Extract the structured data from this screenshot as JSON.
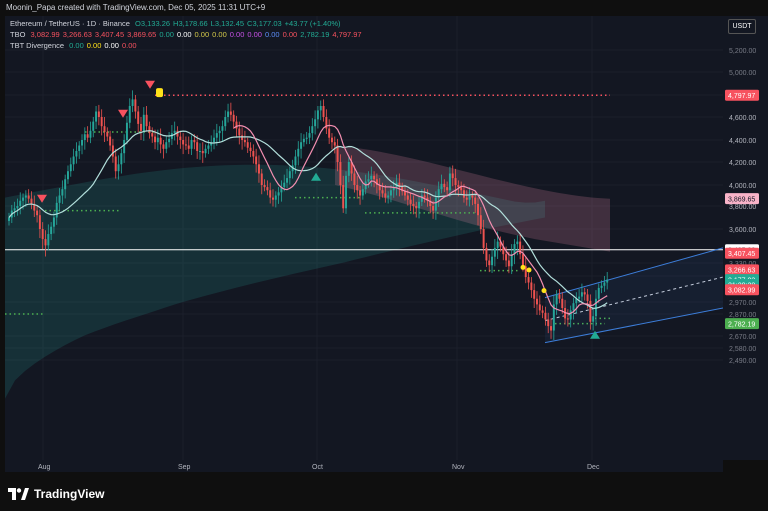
{
  "header": {
    "credit": "Moonin_Papa created with TradingView.com, Dec 05, 2025 11:31 UTC+9"
  },
  "legend": {
    "symbol": "Ethereum / TetherUS · 1D · Binance",
    "ohlc": [
      {
        "k": "O",
        "v": "3,133.26"
      },
      {
        "k": "H",
        "v": "3,178.66"
      },
      {
        "k": "L",
        "v": "3,132.45"
      },
      {
        "k": "C",
        "v": "3,177.03"
      },
      {
        "k": "",
        "v": "+43.77 (+1.40%)"
      }
    ],
    "tbo_label": "TBO",
    "tbo_values": [
      {
        "v": "3,082.99",
        "c": "#f7525f"
      },
      {
        "v": "3,266.63",
        "c": "#f7525f"
      },
      {
        "v": "3,407.45",
        "c": "#f7525f"
      },
      {
        "v": "3,869.65",
        "c": "#f7525f"
      },
      {
        "v": "0.00",
        "c": "#22ab94"
      },
      {
        "v": "0.00",
        "c": "#ffffff"
      },
      {
        "v": "0.00",
        "c": "#d4c94a"
      },
      {
        "v": "0.00",
        "c": "#d4c94a"
      },
      {
        "v": "0.00",
        "c": "#c651e6"
      },
      {
        "v": "0.00",
        "c": "#c651e6"
      },
      {
        "v": "0.00",
        "c": "#5b8cf5"
      },
      {
        "v": "0.00",
        "c": "#f7525f"
      },
      {
        "v": "2,782.19",
        "c": "#22ab94"
      },
      {
        "v": "4,797.97",
        "c": "#f7525f"
      }
    ],
    "tbt_label": "TBT Divergence",
    "tbt_values": [
      {
        "v": "0.00",
        "c": "#22ab94"
      },
      {
        "v": "0.00",
        "c": "#ffe119"
      },
      {
        "v": "0.00",
        "c": "#ffffff"
      },
      {
        "v": "0.00",
        "c": "#f7525f"
      }
    ]
  },
  "currency": "USDT",
  "footer": {
    "brand": "TradingView"
  },
  "chart_data": {
    "type": "candlestick",
    "x_labels": [
      "Aug",
      "Sep",
      "Oct",
      "Nov",
      "Dec"
    ],
    "y_ticks": [
      "5,200.00",
      "5,000.00",
      "4,800.00",
      "4,600.00",
      "4,400.00",
      "4,200.00",
      "4,000.00",
      "3,800.00",
      "3,600.00",
      "3,330.00",
      "3,210.00",
      "2,970.00",
      "2,870.00",
      "2,670.00",
      "2,580.00",
      "2,490.00"
    ],
    "y_tick_values": [
      5200,
      5000,
      4800,
      4600,
      4400,
      4200,
      4000,
      3800,
      3600,
      3330,
      3210,
      2970,
      2870,
      2670,
      2580,
      2490
    ],
    "y_ticks_bold": [
      "4,800.00",
      "4,600.00",
      "4,400.00",
      "4,200.00",
      "4,000.00",
      "3,800.00",
      "3,600.00"
    ],
    "price_tags": [
      {
        "label": "4,797.97",
        "value": 4797.97,
        "bg": "#f7525f",
        "fg": "#ffffff"
      },
      {
        "label": "3,869.65",
        "value": 3869.65,
        "bg": "#f8b3c8",
        "fg": "#131722"
      },
      {
        "label": "3,435.00",
        "value": 3435,
        "bg": "#ffffff",
        "fg": "#131722"
      },
      {
        "label": "3,407.45",
        "value": 3407.45,
        "bg": "#f7525f",
        "fg": "#ffffff"
      },
      {
        "label": "3,266.63",
        "value": 3266.63,
        "bg": "#f7525f",
        "fg": "#ffffff"
      },
      {
        "label": "3,177.03",
        "value": 3177.03,
        "bg": "#22ab94",
        "fg": "#ffffff"
      },
      {
        "label": "21:28:28",
        "value": 3132,
        "bg": "#22ab94",
        "fg": "#ffffff"
      },
      {
        "label": "3,082.99",
        "value": 3082.99,
        "bg": "#f7525f",
        "fg": "#ffffff"
      },
      {
        "label": "2,782.19",
        "value": 2782.19,
        "bg": "#4caf50",
        "fg": "#ffffff"
      }
    ],
    "hline": 3435,
    "colors": {
      "up": "#26a69a",
      "down": "#ef5350",
      "ma_fast": "#f48fb1",
      "ma_slow": "#b2dfdb",
      "grid": "#1e2230"
    }
  }
}
